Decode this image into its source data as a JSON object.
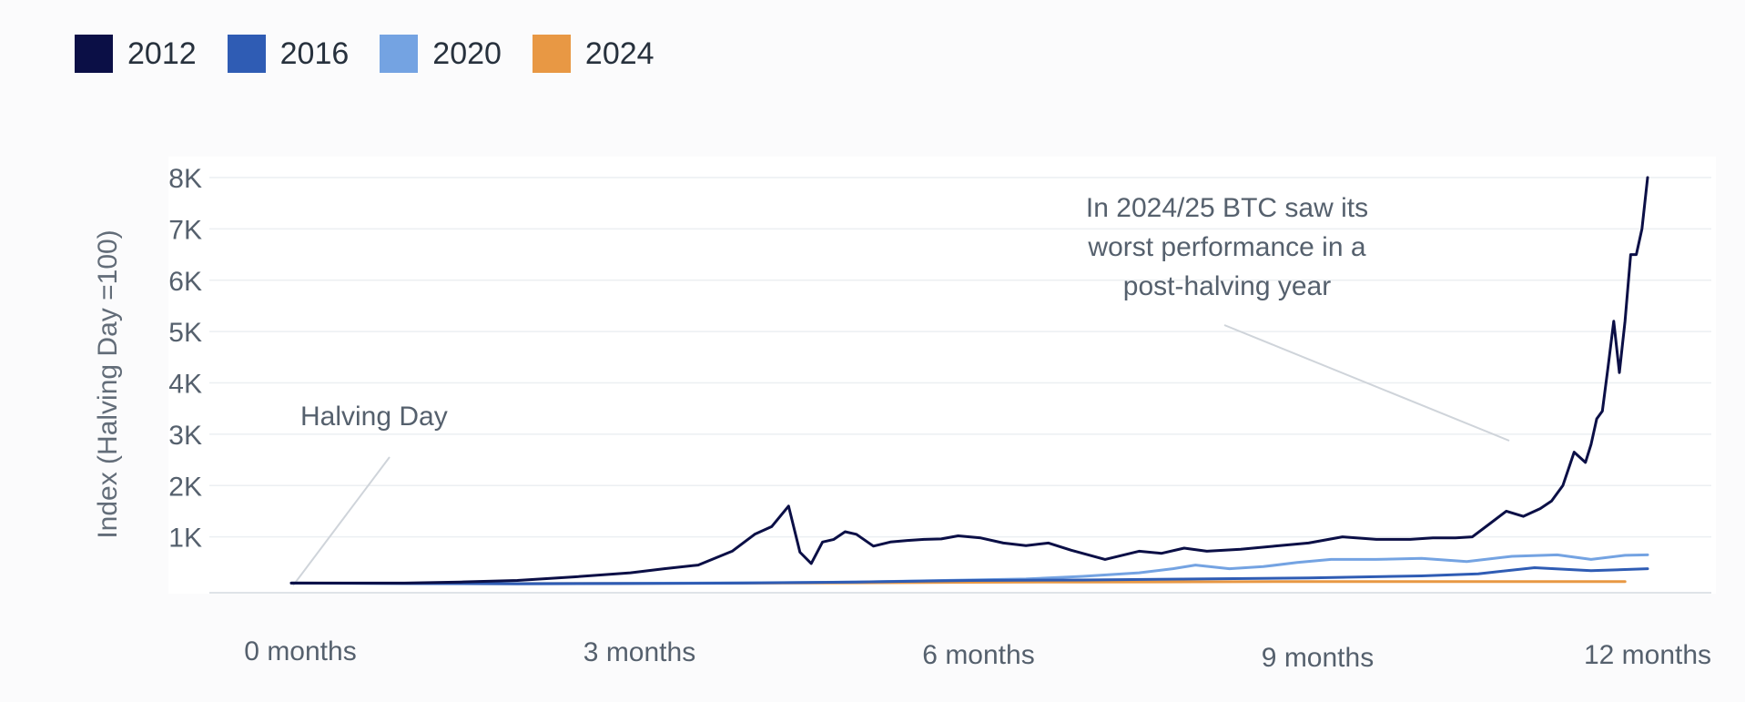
{
  "legend": [
    {
      "label": "2012",
      "color": "#0b0f46"
    },
    {
      "label": "2016",
      "color": "#2f5cb4"
    },
    {
      "label": "2020",
      "color": "#74a3e2"
    },
    {
      "label": "2024",
      "color": "#e89844"
    }
  ],
  "chart_data": {
    "type": "line",
    "title": "",
    "xlabel": "",
    "ylabel": "Index (Halving Day =100)",
    "xlim": [
      0,
      12
    ],
    "ylim": [
      0,
      8000
    ],
    "grid": true,
    "legend_position": "top-left",
    "x_ticks": [
      {
        "value": 0,
        "label": "0 months"
      },
      {
        "value": 3,
        "label": "3 months"
      },
      {
        "value": 6,
        "label": "6 months"
      },
      {
        "value": 9,
        "label": "9 months"
      },
      {
        "value": 12,
        "label": "12 months"
      }
    ],
    "y_ticks": [
      {
        "value": 1000,
        "label": "1K"
      },
      {
        "value": 2000,
        "label": "2K"
      },
      {
        "value": 3000,
        "label": "3K"
      },
      {
        "value": 4000,
        "label": "4K"
      },
      {
        "value": 5000,
        "label": "5K"
      },
      {
        "value": 6000,
        "label": "6K"
      },
      {
        "value": 7000,
        "label": "7K"
      },
      {
        "value": 8000,
        "label": "8K"
      }
    ],
    "series": [
      {
        "name": "2012",
        "color": "#0b0f46",
        "x": [
          0,
          0.5,
          1,
          1.5,
          2,
          2.5,
          3,
          3.3,
          3.6,
          3.9,
          4.1,
          4.25,
          4.4,
          4.5,
          4.6,
          4.7,
          4.8,
          4.9,
          5.0,
          5.15,
          5.3,
          5.45,
          5.6,
          5.75,
          5.9,
          6.1,
          6.3,
          6.5,
          6.7,
          6.9,
          7.2,
          7.5,
          7.7,
          7.9,
          8.1,
          8.4,
          8.7,
          9.0,
          9.3,
          9.6,
          9.9,
          10.1,
          10.3,
          10.45,
          10.6,
          10.75,
          10.9,
          11.05,
          11.15,
          11.25,
          11.35,
          11.45,
          11.5,
          11.55,
          11.6,
          11.65,
          11.7,
          11.75,
          11.8,
          11.85,
          11.9,
          11.95,
          12.0
        ],
        "y": [
          100,
          100,
          100,
          120,
          150,
          220,
          300,
          380,
          450,
          720,
          1050,
          1200,
          1600,
          700,
          480,
          900,
          950,
          1100,
          1050,
          820,
          900,
          930,
          950,
          960,
          1020,
          980,
          880,
          830,
          880,
          740,
          560,
          720,
          680,
          780,
          720,
          760,
          820,
          880,
          1000,
          950,
          950,
          980,
          980,
          1000,
          1250,
          1500,
          1400,
          1550,
          1700,
          2000,
          2650,
          2450,
          2800,
          3300,
          3450,
          4300,
          5200,
          4200,
          5200,
          6500,
          6500,
          7000,
          8000
        ]
      },
      {
        "name": "2016",
        "color": "#2f5cb4",
        "x": [
          0,
          1,
          2,
          3,
          4,
          5,
          6,
          7,
          8,
          9,
          10,
          10.5,
          11,
          11.5,
          12
        ],
        "y": [
          100,
          90,
          85,
          90,
          100,
          120,
          150,
          160,
          180,
          200,
          240,
          280,
          400,
          340,
          380
        ]
      },
      {
        "name": "2020",
        "color": "#74a3e2",
        "x": [
          0,
          1,
          2,
          3,
          4,
          5,
          5.5,
          6,
          6.5,
          7,
          7.5,
          7.8,
          8,
          8.3,
          8.6,
          8.9,
          9.2,
          9.6,
          10,
          10.4,
          10.8,
          11.2,
          11.5,
          11.8,
          12
        ],
        "y": [
          100,
          95,
          90,
          95,
          105,
          120,
          140,
          160,
          180,
          230,
          300,
          380,
          450,
          380,
          420,
          500,
          560,
          560,
          580,
          520,
          620,
          650,
          560,
          640,
          650
        ]
      },
      {
        "name": "2024",
        "color": "#e89844",
        "x": [
          0,
          1,
          2,
          3,
          4,
          5,
          6,
          7,
          8,
          9,
          10,
          11,
          11.8
        ],
        "y": [
          100,
          95,
          90,
          95,
          100,
          105,
          115,
          120,
          125,
          130,
          130,
          130,
          130
        ]
      }
    ],
    "annotations": [
      {
        "lines": [
          "Halving Day"
        ]
      },
      {
        "lines": [
          "In 2024/25 BTC saw its",
          "worst performance in a",
          "post-halving year"
        ]
      }
    ]
  }
}
